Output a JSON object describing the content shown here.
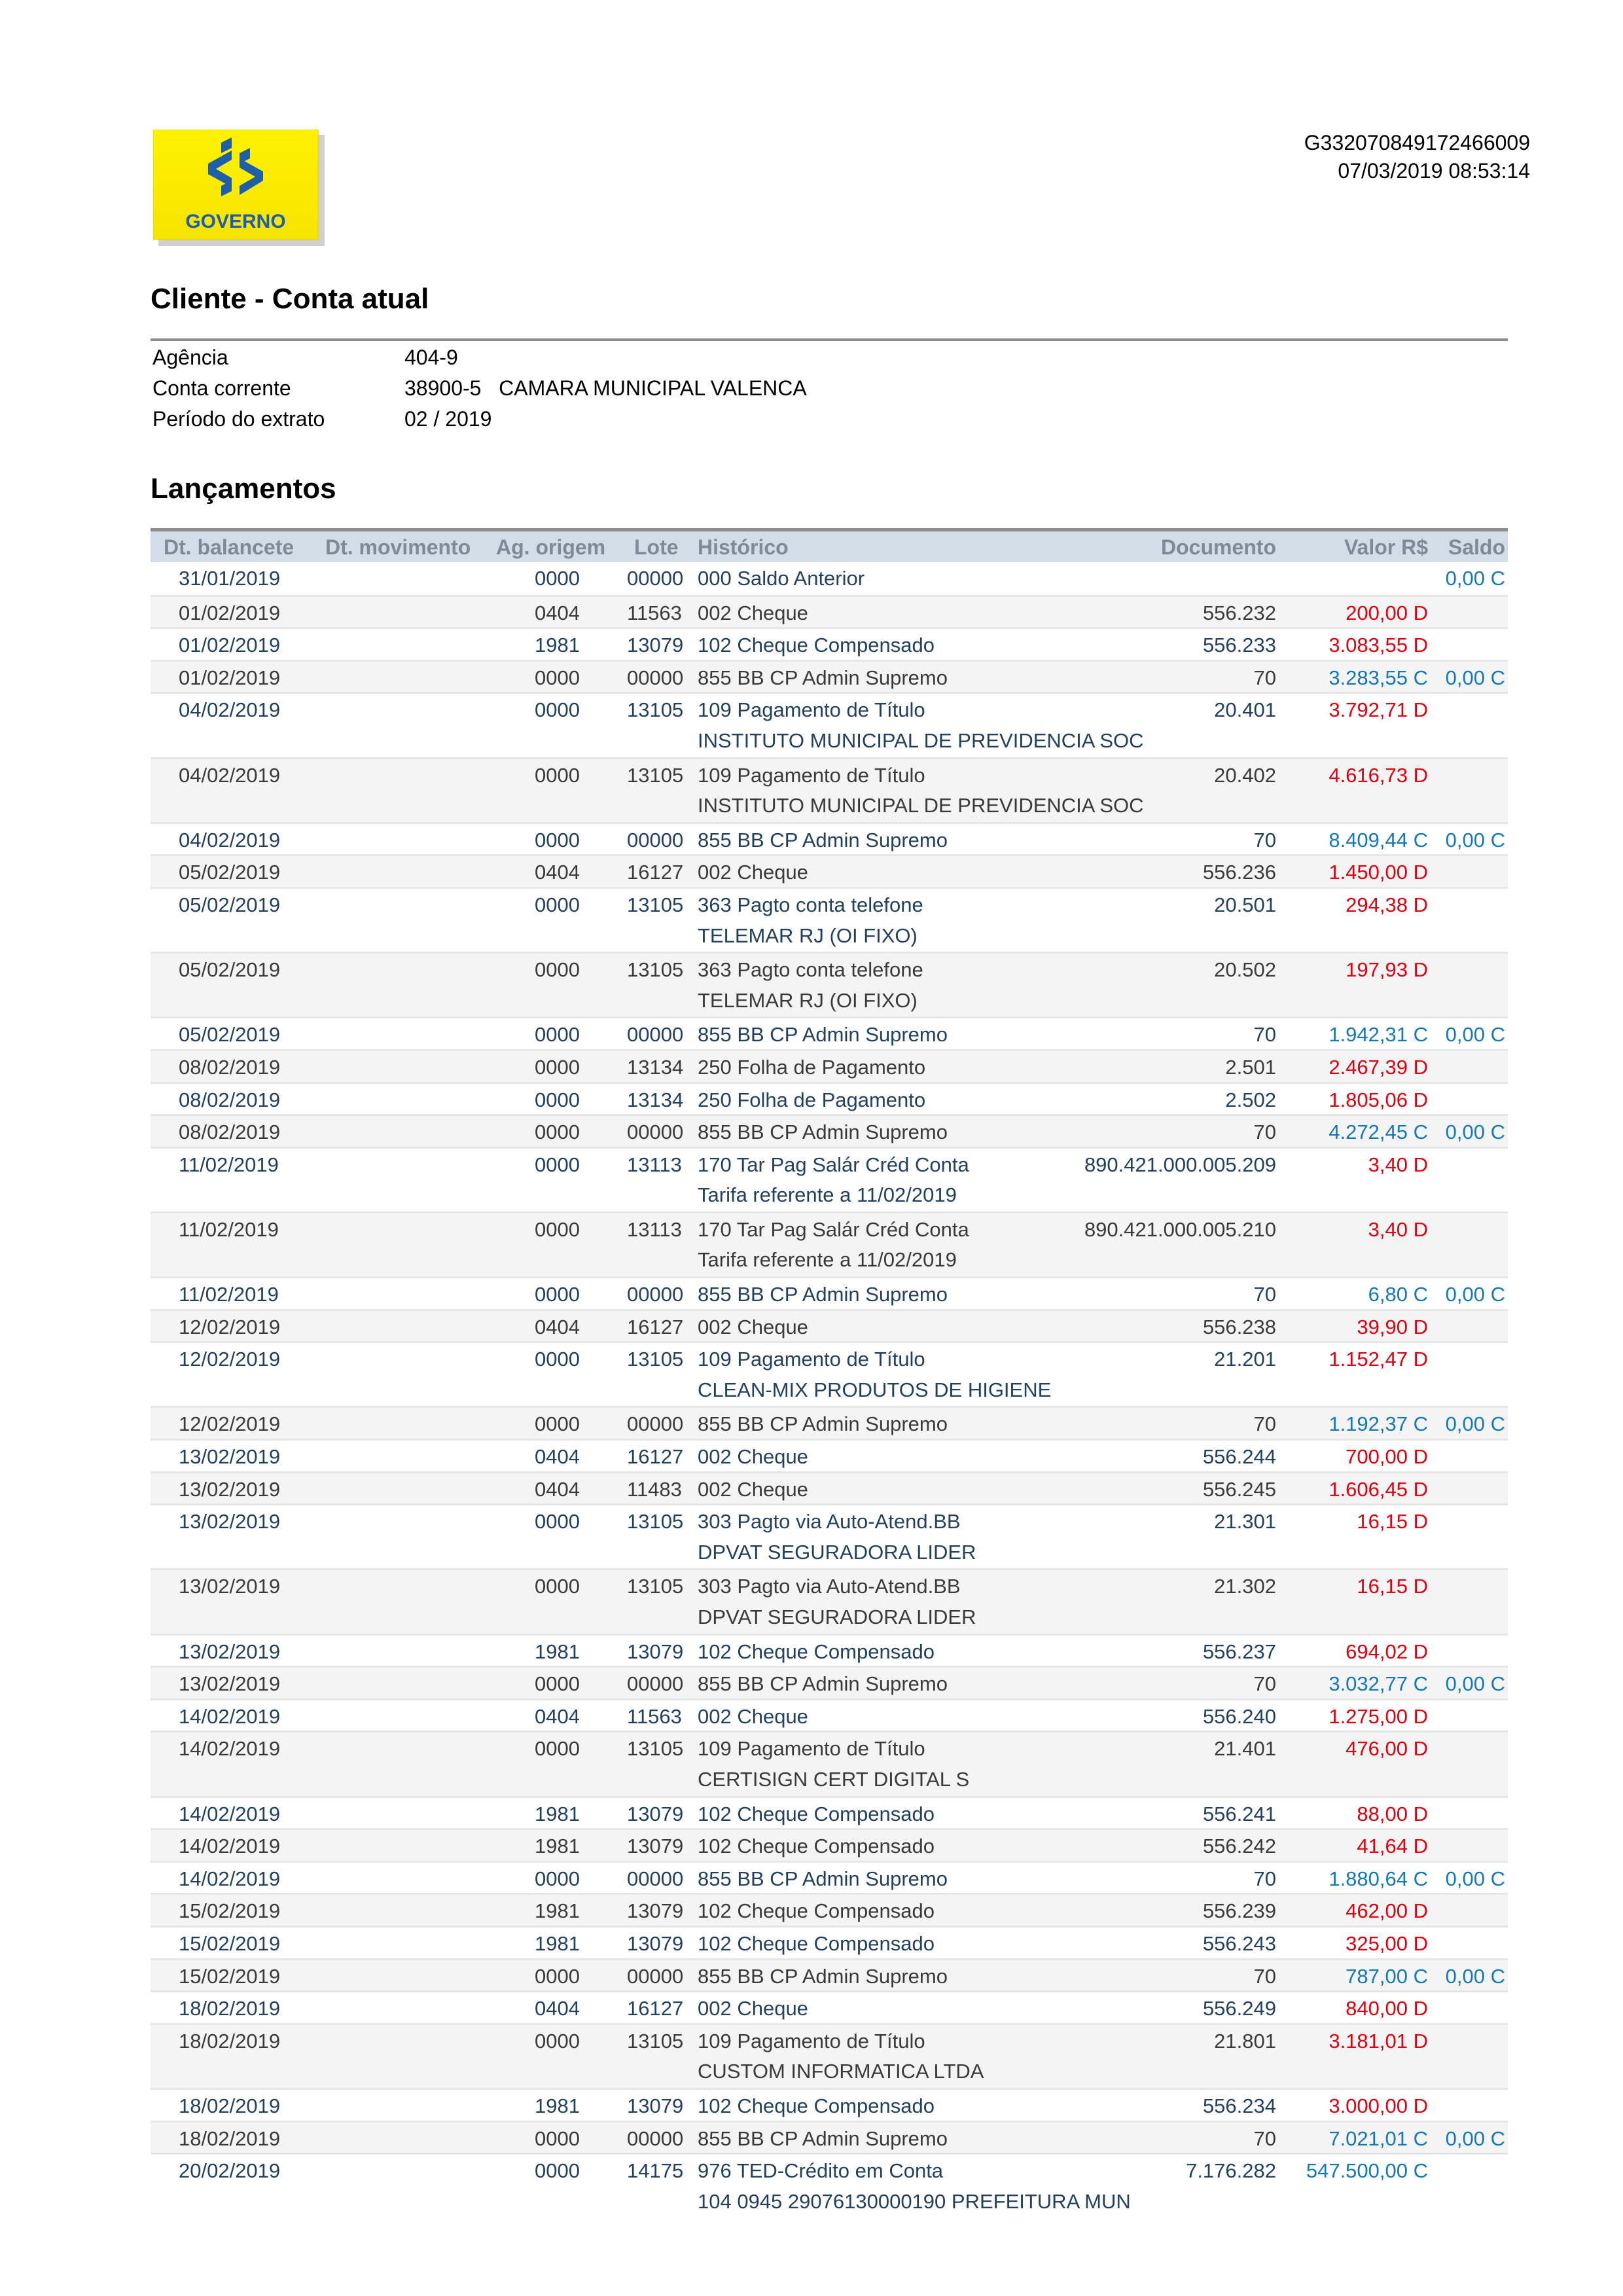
{
  "header": {
    "logo_text": "GOVERNO",
    "reference": "G332070849172466009",
    "datetime": "07/03/2019 08:53:14",
    "title": "Cliente - Conta atual"
  },
  "account": {
    "agencia_label": "Agência",
    "agencia": "404-9",
    "conta_label": "Conta corrente",
    "conta": "38900-5   CAMARA MUNICIPAL VALENCA",
    "periodo_label": "Período do extrato",
    "periodo": "02 / 2019"
  },
  "section_title": "Lançamentos",
  "colors": {
    "debit": "#e00010",
    "credit": "#1679b7",
    "header_bg": "#d3dde7"
  },
  "columns": [
    "Dt. balancete",
    "Dt. movimento",
    "Ag. origem",
    "Lote",
    "Histórico",
    "Documento",
    "Valor R$",
    "Saldo"
  ],
  "transactions": [
    {
      "date": "31/01/2019",
      "ag": "0000",
      "lote": "00000",
      "hist": "000 Saldo Anterior",
      "doc": "",
      "valor": "",
      "saldo": "0,00 C"
    },
    {
      "date": "01/02/2019",
      "ag": "0404",
      "lote": "11563",
      "hist": "002 Cheque",
      "doc": "556.232",
      "valor": "200,00 D",
      "saldo": ""
    },
    {
      "date": "01/02/2019",
      "ag": "1981",
      "lote": "13079",
      "hist": "102 Cheque Compensado",
      "doc": "556.233",
      "valor": "3.083,55 D",
      "saldo": ""
    },
    {
      "date": "01/02/2019",
      "ag": "0000",
      "lote": "00000",
      "hist": "855 BB CP Admin Supremo",
      "doc": "70",
      "valor": "3.283,55 C",
      "saldo": "0,00 C"
    },
    {
      "date": "04/02/2019",
      "ag": "0000",
      "lote": "13105",
      "hist": "109 Pagamento de Título",
      "doc": "20.401",
      "valor": "3.792,71 D",
      "saldo": "",
      "detail": "INSTITUTO MUNICIPAL DE PREVIDENCIA SOC"
    },
    {
      "date": "04/02/2019",
      "ag": "0000",
      "lote": "13105",
      "hist": "109 Pagamento de Título",
      "doc": "20.402",
      "valor": "4.616,73 D",
      "saldo": "",
      "detail": "INSTITUTO MUNICIPAL DE PREVIDENCIA SOC"
    },
    {
      "date": "04/02/2019",
      "ag": "0000",
      "lote": "00000",
      "hist": "855 BB CP Admin Supremo",
      "doc": "70",
      "valor": "8.409,44 C",
      "saldo": "0,00 C"
    },
    {
      "date": "05/02/2019",
      "ag": "0404",
      "lote": "16127",
      "hist": "002 Cheque",
      "doc": "556.236",
      "valor": "1.450,00 D",
      "saldo": ""
    },
    {
      "date": "05/02/2019",
      "ag": "0000",
      "lote": "13105",
      "hist": "363 Pagto conta telefone",
      "doc": "20.501",
      "valor": "294,38 D",
      "saldo": "",
      "detail": "TELEMAR RJ (OI FIXO)"
    },
    {
      "date": "05/02/2019",
      "ag": "0000",
      "lote": "13105",
      "hist": "363 Pagto conta telefone",
      "doc": "20.502",
      "valor": "197,93 D",
      "saldo": "",
      "detail": "TELEMAR RJ (OI FIXO)"
    },
    {
      "date": "05/02/2019",
      "ag": "0000",
      "lote": "00000",
      "hist": "855 BB CP Admin Supremo",
      "doc": "70",
      "valor": "1.942,31 C",
      "saldo": "0,00 C"
    },
    {
      "date": "08/02/2019",
      "ag": "0000",
      "lote": "13134",
      "hist": "250 Folha de Pagamento",
      "doc": "2.501",
      "valor": "2.467,39 D",
      "saldo": ""
    },
    {
      "date": "08/02/2019",
      "ag": "0000",
      "lote": "13134",
      "hist": "250 Folha de Pagamento",
      "doc": "2.502",
      "valor": "1.805,06 D",
      "saldo": ""
    },
    {
      "date": "08/02/2019",
      "ag": "0000",
      "lote": "00000",
      "hist": "855 BB CP Admin Supremo",
      "doc": "70",
      "valor": "4.272,45 C",
      "saldo": "0,00 C"
    },
    {
      "date": "11/02/2019",
      "ag": "0000",
      "lote": "13113",
      "hist": "170 Tar Pag Salár Créd Conta",
      "doc": "890.421.000.005.209",
      "valor": "3,40 D",
      "saldo": "",
      "detail": "Tarifa referente a 11/02/2019"
    },
    {
      "date": "11/02/2019",
      "ag": "0000",
      "lote": "13113",
      "hist": "170 Tar Pag Salár Créd Conta",
      "doc": "890.421.000.005.210",
      "valor": "3,40 D",
      "saldo": "",
      "detail": "Tarifa referente a 11/02/2019"
    },
    {
      "date": "11/02/2019",
      "ag": "0000",
      "lote": "00000",
      "hist": "855 BB CP Admin Supremo",
      "doc": "70",
      "valor": "6,80 C",
      "saldo": "0,00 C"
    },
    {
      "date": "12/02/2019",
      "ag": "0404",
      "lote": "16127",
      "hist": "002 Cheque",
      "doc": "556.238",
      "valor": "39,90 D",
      "saldo": ""
    },
    {
      "date": "12/02/2019",
      "ag": "0000",
      "lote": "13105",
      "hist": "109 Pagamento de Título",
      "doc": "21.201",
      "valor": "1.152,47 D",
      "saldo": "",
      "detail": "CLEAN-MIX PRODUTOS DE HIGIENE"
    },
    {
      "date": "12/02/2019",
      "ag": "0000",
      "lote": "00000",
      "hist": "855 BB CP Admin Supremo",
      "doc": "70",
      "valor": "1.192,37 C",
      "saldo": "0,00 C"
    },
    {
      "date": "13/02/2019",
      "ag": "0404",
      "lote": "16127",
      "hist": "002 Cheque",
      "doc": "556.244",
      "valor": "700,00 D",
      "saldo": ""
    },
    {
      "date": "13/02/2019",
      "ag": "0404",
      "lote": "11483",
      "hist": "002 Cheque",
      "doc": "556.245",
      "valor": "1.606,45 D",
      "saldo": ""
    },
    {
      "date": "13/02/2019",
      "ag": "0000",
      "lote": "13105",
      "hist": "303 Pagto via Auto-Atend.BB",
      "doc": "21.301",
      "valor": "16,15 D",
      "saldo": "",
      "detail": "DPVAT SEGURADORA LIDER"
    },
    {
      "date": "13/02/2019",
      "ag": "0000",
      "lote": "13105",
      "hist": "303 Pagto via Auto-Atend.BB",
      "doc": "21.302",
      "valor": "16,15 D",
      "saldo": "",
      "detail": "DPVAT SEGURADORA LIDER"
    },
    {
      "date": "13/02/2019",
      "ag": "1981",
      "lote": "13079",
      "hist": "102 Cheque Compensado",
      "doc": "556.237",
      "valor": "694,02 D",
      "saldo": ""
    },
    {
      "date": "13/02/2019",
      "ag": "0000",
      "lote": "00000",
      "hist": "855 BB CP Admin Supremo",
      "doc": "70",
      "valor": "3.032,77 C",
      "saldo": "0,00 C"
    },
    {
      "date": "14/02/2019",
      "ag": "0404",
      "lote": "11563",
      "hist": "002 Cheque",
      "doc": "556.240",
      "valor": "1.275,00 D",
      "saldo": ""
    },
    {
      "date": "14/02/2019",
      "ag": "0000",
      "lote": "13105",
      "hist": "109 Pagamento de Título",
      "doc": "21.401",
      "valor": "476,00 D",
      "saldo": "",
      "detail": "CERTISIGN CERT DIGITAL S"
    },
    {
      "date": "14/02/2019",
      "ag": "1981",
      "lote": "13079",
      "hist": "102 Cheque Compensado",
      "doc": "556.241",
      "valor": "88,00 D",
      "saldo": ""
    },
    {
      "date": "14/02/2019",
      "ag": "1981",
      "lote": "13079",
      "hist": "102 Cheque Compensado",
      "doc": "556.242",
      "valor": "41,64 D",
      "saldo": ""
    },
    {
      "date": "14/02/2019",
      "ag": "0000",
      "lote": "00000",
      "hist": "855 BB CP Admin Supremo",
      "doc": "70",
      "valor": "1.880,64 C",
      "saldo": "0,00 C"
    },
    {
      "date": "15/02/2019",
      "ag": "1981",
      "lote": "13079",
      "hist": "102 Cheque Compensado",
      "doc": "556.239",
      "valor": "462,00 D",
      "saldo": ""
    },
    {
      "date": "15/02/2019",
      "ag": "1981",
      "lote": "13079",
      "hist": "102 Cheque Compensado",
      "doc": "556.243",
      "valor": "325,00 D",
      "saldo": ""
    },
    {
      "date": "15/02/2019",
      "ag": "0000",
      "lote": "00000",
      "hist": "855 BB CP Admin Supremo",
      "doc": "70",
      "valor": "787,00 C",
      "saldo": "0,00 C"
    },
    {
      "date": "18/02/2019",
      "ag": "0404",
      "lote": "16127",
      "hist": "002 Cheque",
      "doc": "556.249",
      "valor": "840,00 D",
      "saldo": ""
    },
    {
      "date": "18/02/2019",
      "ag": "0000",
      "lote": "13105",
      "hist": "109 Pagamento de Título",
      "doc": "21.801",
      "valor": "3.181,01 D",
      "saldo": "",
      "detail": "CUSTOM INFORMATICA LTDA"
    },
    {
      "date": "18/02/2019",
      "ag": "1981",
      "lote": "13079",
      "hist": "102 Cheque Compensado",
      "doc": "556.234",
      "valor": "3.000,00 D",
      "saldo": ""
    },
    {
      "date": "18/02/2019",
      "ag": "0000",
      "lote": "00000",
      "hist": "855 BB CP Admin Supremo",
      "doc": "70",
      "valor": "7.021,01 C",
      "saldo": "0,00 C"
    },
    {
      "date": "20/02/2019",
      "ag": "0000",
      "lote": "14175",
      "hist": "976 TED-Crédito em Conta",
      "doc": "7.176.282",
      "valor": "547.500,00 C",
      "saldo": "",
      "detail": "104 0945 29076130000190 PREFEITURA MUN"
    }
  ]
}
